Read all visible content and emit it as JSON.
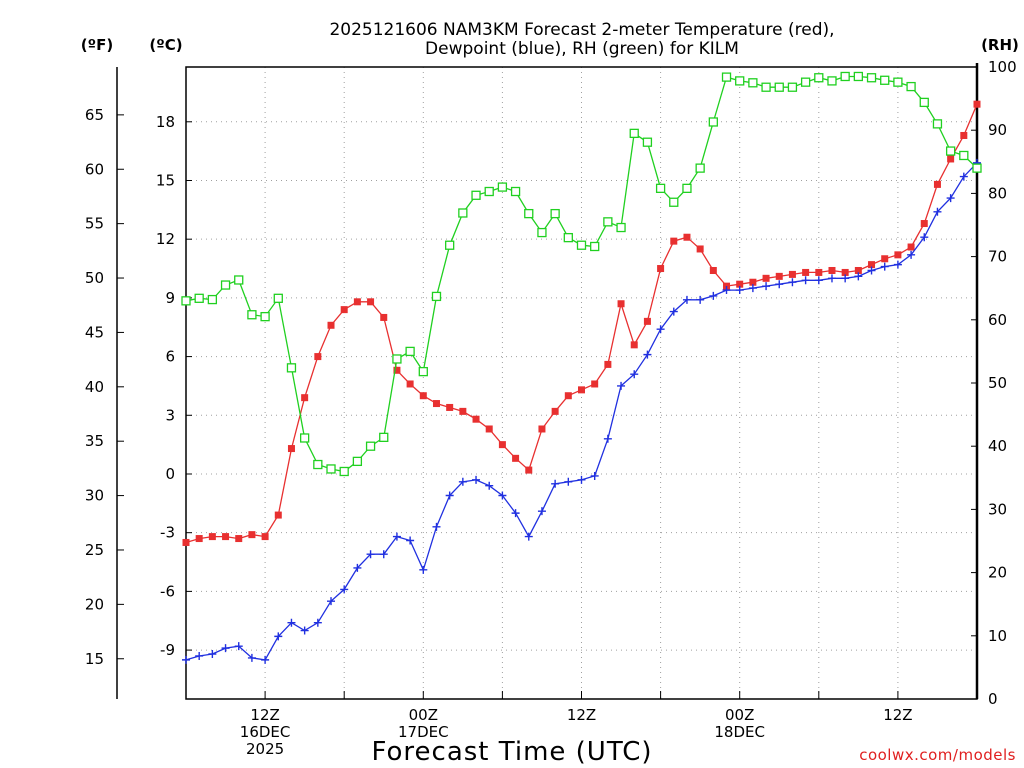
{
  "chart_data": {
    "type": "line",
    "title": "2025121606 NAM3KM Forecast 2-meter Temperature (red),",
    "subtitle": "Dewpoint (blue), RH (green) for KILM",
    "xlabel": "Forecast Time (UTC)",
    "credit": "coolwx.com/models",
    "units": {
      "fahrenheit": "(ºF)",
      "celsius": "(ºC)",
      "rh": "(RH)"
    },
    "x_hours_start": 6,
    "x_hours_end": 66,
    "celsius_range": [
      -11.5,
      20.8
    ],
    "rh_range": [
      0,
      100
    ],
    "fahrenheit_range": [
      11.3,
      69.4
    ],
    "grid": true,
    "celsius_ticks": [
      "18",
      "15",
      "12",
      "9",
      "6",
      "3",
      "0",
      "-3",
      "-6",
      "-9"
    ],
    "fahrenheit_ticks": [
      "65",
      "60",
      "55",
      "50",
      "45",
      "40",
      "35",
      "30",
      "25",
      "20",
      "15"
    ],
    "rh_ticks": [
      "100",
      "90",
      "80",
      "70",
      "60",
      "50",
      "40",
      "30",
      "20",
      "10",
      "0"
    ],
    "x_ticks": [
      {
        "hour": 12,
        "lines": [
          "12Z",
          "16DEC",
          "2025"
        ]
      },
      {
        "hour": 24,
        "lines": [
          "00Z",
          "17DEC"
        ]
      },
      {
        "hour": 36,
        "lines": [
          "12Z"
        ]
      },
      {
        "hour": 48,
        "lines": [
          "00Z",
          "18DEC"
        ]
      },
      {
        "hour": 60,
        "lines": [
          "12Z"
        ]
      }
    ],
    "series": [
      {
        "name": "Temperature",
        "unit": "C",
        "color": "#e83030",
        "marker": "filled-square",
        "values": [
          -3.5,
          -3.3,
          -3.2,
          -3.2,
          -3.3,
          -3.1,
          -3.2,
          -2.1,
          1.3,
          3.9,
          6.0,
          7.6,
          8.4,
          8.8,
          8.8,
          8.0,
          5.3,
          4.6,
          4.0,
          3.6,
          3.4,
          3.2,
          2.8,
          2.3,
          1.5,
          0.8,
          0.2,
          2.3,
          3.2,
          4.0,
          4.3,
          4.6,
          5.6,
          8.7,
          6.6,
          7.8,
          10.5,
          11.9,
          12.1,
          11.5,
          10.4,
          9.6,
          9.7,
          9.8,
          10.0,
          10.1,
          10.2,
          10.3,
          10.3,
          10.4,
          10.3,
          10.4,
          10.7,
          11.0,
          11.2,
          11.6,
          12.8,
          14.8,
          16.1,
          17.3,
          18.9
        ]
      },
      {
        "name": "Dewpoint",
        "unit": "C",
        "color": "#2030e0",
        "marker": "plus",
        "values": [
          -9.5,
          -9.3,
          -9.2,
          -8.9,
          -8.8,
          -9.4,
          -9.5,
          -8.3,
          -7.6,
          -8.0,
          -7.6,
          -6.5,
          -5.9,
          -4.8,
          -4.1,
          -4.1,
          -3.2,
          -3.4,
          -4.9,
          -2.7,
          -1.1,
          -0.4,
          -0.3,
          -0.6,
          -1.1,
          -2.0,
          -3.2,
          -1.9,
          -0.5,
          -0.4,
          -0.3,
          -0.1,
          1.8,
          4.5,
          5.1,
          6.1,
          7.4,
          8.3,
          8.9,
          8.9,
          9.1,
          9.4,
          9.4,
          9.5,
          9.6,
          9.7,
          9.8,
          9.9,
          9.9,
          10.0,
          10.0,
          10.1,
          10.4,
          10.6,
          10.7,
          11.2,
          12.1,
          13.4,
          14.1,
          15.2,
          15.9
        ]
      },
      {
        "name": "RH",
        "unit": "%",
        "color": "#20d020",
        "marker": "open-square",
        "values": [
          63,
          63.4,
          63.2,
          65.5,
          66.3,
          60.8,
          60.5,
          63.4,
          52.4,
          41.3,
          37.1,
          36.4,
          36,
          37.6,
          40,
          41.4,
          53.8,
          55,
          51.8,
          63.7,
          71.8,
          76.9,
          79.7,
          80.3,
          81,
          80.3,
          76.8,
          73.8,
          76.8,
          73,
          71.8,
          71.6,
          75.5,
          74.6,
          89.5,
          88.1,
          80.8,
          78.6,
          80.8,
          84,
          91.3,
          98.4,
          97.8,
          97.5,
          96.8,
          96.8,
          96.8,
          97.6,
          98.3,
          97.8,
          98.5,
          98.5,
          98.3,
          97.9,
          97.6,
          96.9,
          94.4,
          91,
          86.7,
          86,
          84
        ]
      }
    ]
  }
}
